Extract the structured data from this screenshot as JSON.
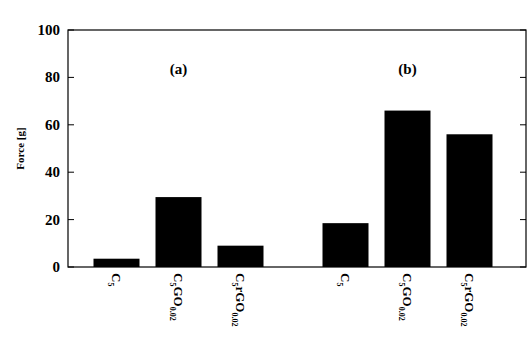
{
  "chart_data": {
    "type": "bar",
    "y_label": "Force [g]",
    "categories": [
      "C5",
      "C5GO0.02",
      "C5rGO0.02"
    ],
    "series": [
      {
        "name": "(a)",
        "color": "#000000",
        "values": [
          3.5,
          29.5,
          9
        ]
      },
      {
        "name": "(b)",
        "color": "#000000",
        "values": [
          18.5,
          66,
          56
        ]
      }
    ],
    "ylim": [
      0,
      100
    ],
    "yticks": [
      0,
      20,
      40,
      60,
      80,
      100
    ],
    "grid": false
  }
}
